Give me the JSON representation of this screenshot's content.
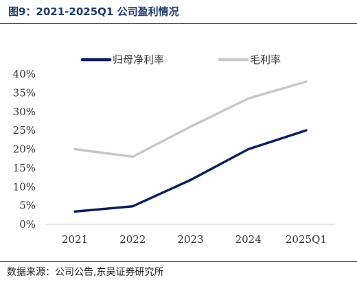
{
  "header": {
    "title": "图9：2021-2025Q1 公司盈利情况"
  },
  "footer": {
    "source": "数据来源：公司公告,东吴证券研究所"
  },
  "chart_data": {
    "type": "line",
    "title": "",
    "xlabel": "",
    "ylabel": "",
    "categories": [
      "2021",
      "2022",
      "2023",
      "2024",
      "2025Q1"
    ],
    "series": [
      {
        "name": "归母净利率",
        "values": [
          3.4,
          4.8,
          11.8,
          20.0,
          25.0
        ],
        "color": "#0f1e5a"
      },
      {
        "name": "毛利率",
        "values": [
          20.0,
          18.0,
          26.0,
          33.5,
          38.0
        ],
        "color": "#c8c8c8"
      }
    ],
    "ylim": [
      0,
      40
    ],
    "yticks": [
      "0%",
      "5%",
      "10%",
      "15%",
      "20%",
      "25%",
      "30%",
      "35%",
      "40%"
    ],
    "legend_position": "top",
    "grid": false
  }
}
